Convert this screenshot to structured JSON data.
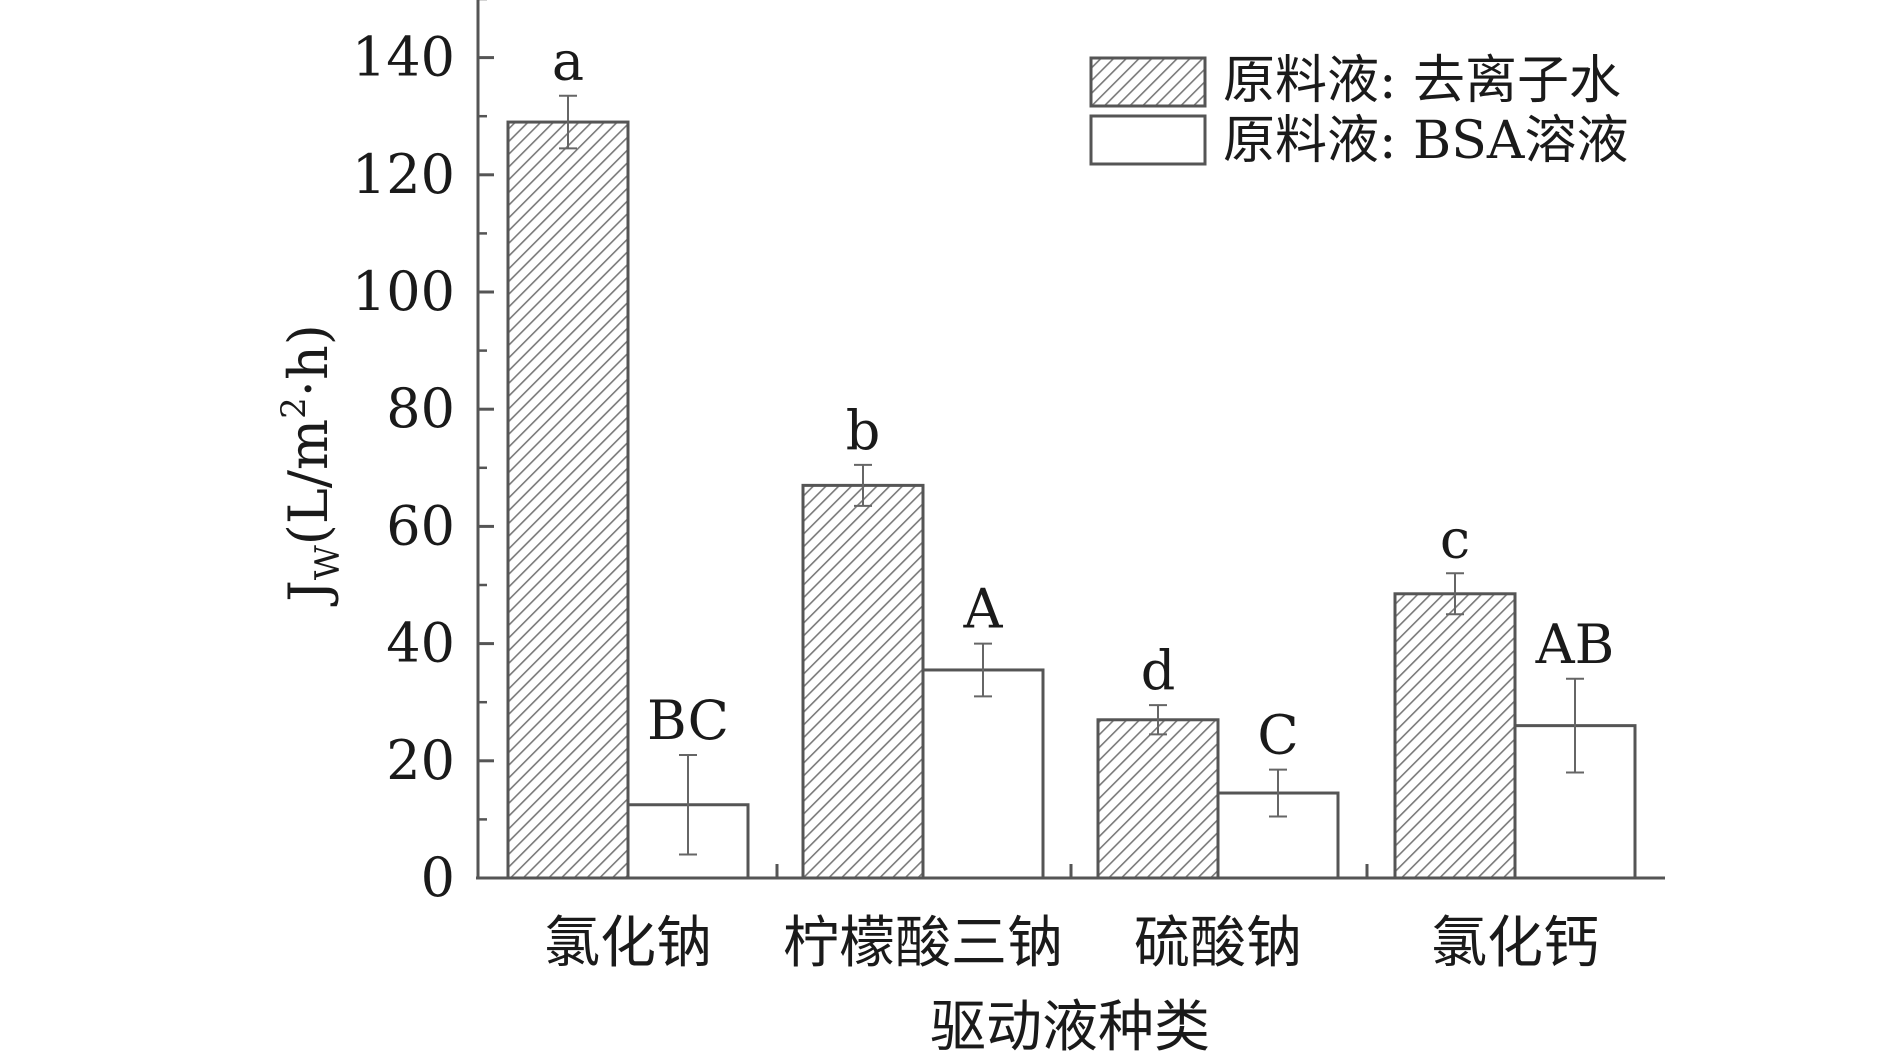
{
  "chart_data": {
    "type": "bar",
    "ylabel": "J",
    "ylabel_sub": "W",
    "ylabel_unit": "(L/m",
    "ylabel_sup": "2",
    "ylabel_end": "·h)",
    "xlabel": "驱动液种类",
    "categories": [
      "氯化钠",
      "柠檬酸三钠",
      "硫酸钠",
      "氯化钙"
    ],
    "ylim": [
      0,
      150
    ],
    "yticks": [
      0,
      20,
      40,
      60,
      80,
      100,
      120,
      140
    ],
    "series": [
      {
        "name": "原料液: 去离子水",
        "fill": "hatched",
        "values": [
          129,
          67,
          27,
          48.5
        ],
        "errors": [
          4.5,
          3.5,
          2.5,
          3.5
        ],
        "labels": [
          "a",
          "b",
          "d",
          "c"
        ]
      },
      {
        "name": "原料液: BSA溶液",
        "fill": "white",
        "values": [
          12.5,
          35.5,
          14.5,
          26
        ],
        "errors": [
          8.5,
          4.5,
          4,
          8
        ],
        "labels": [
          "BC",
          "A",
          "C",
          "AB"
        ]
      }
    ],
    "legend_position": "top-right",
    "grid": false,
    "colors": {
      "stroke": "#555555",
      "hatch": "#777777",
      "text": "#1a1a1a"
    }
  }
}
